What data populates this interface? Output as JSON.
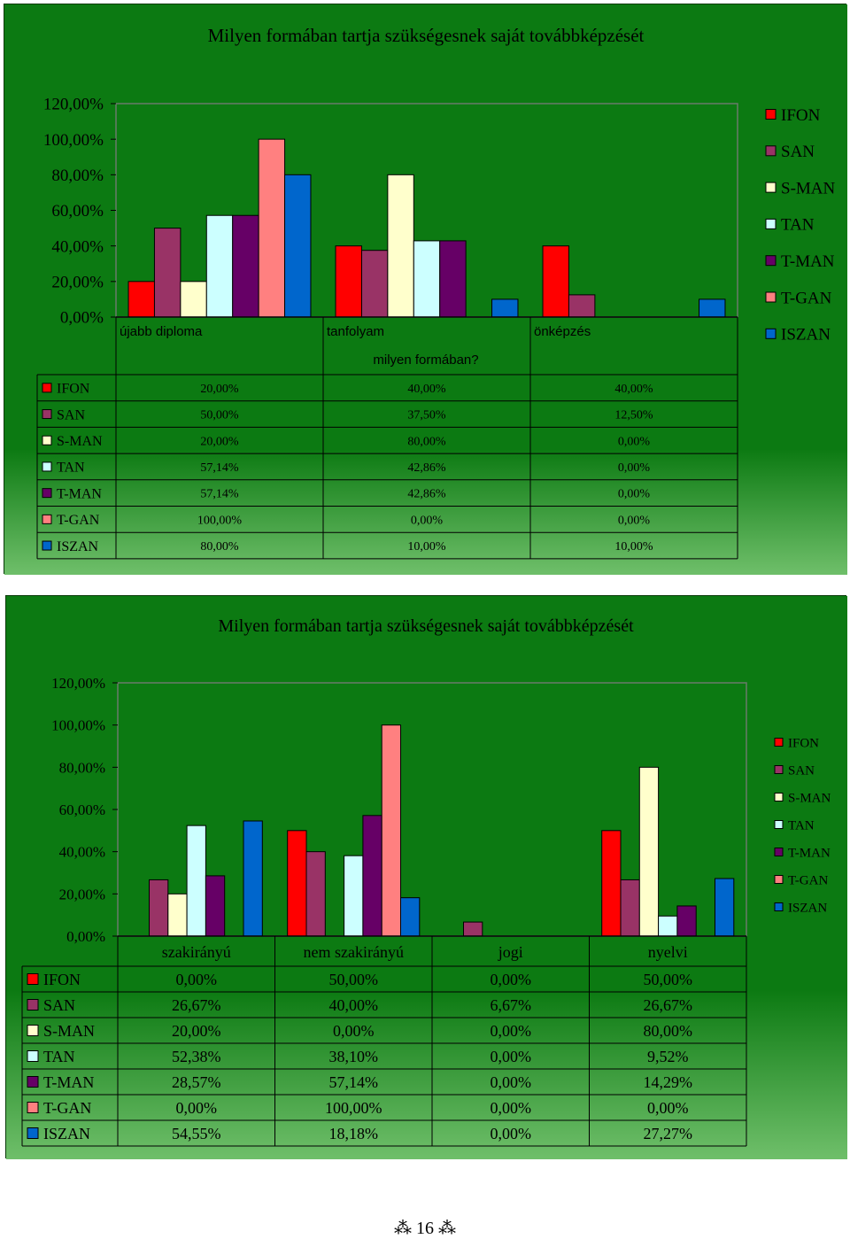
{
  "chart_data": [
    {
      "type": "bar",
      "title": "Milyen formában tartja szükségesnek saját továbbképzését",
      "xlabel": "milyen formában?",
      "ylabel": "",
      "ylim": [
        0,
        120
      ],
      "yticks": [
        "0,00%",
        "20,00%",
        "40,00%",
        "60,00%",
        "80,00%",
        "100,00%",
        "120,00%"
      ],
      "grid": false,
      "legend": "right",
      "categories": [
        "újabb diploma",
        "tanfolyam",
        "önképzés"
      ],
      "series": [
        {
          "name": "IFON",
          "color": "#ff0000",
          "values": [
            20,
            40,
            40
          ],
          "labels": [
            "20,00%",
            "40,00%",
            "40,00%"
          ]
        },
        {
          "name": "SAN",
          "color": "#993366",
          "values": [
            50,
            37.5,
            12.5
          ],
          "labels": [
            "50,00%",
            "37,50%",
            "12,50%"
          ]
        },
        {
          "name": "S-MAN",
          "color": "#ffffcc",
          "values": [
            20,
            80,
            0
          ],
          "labels": [
            "20,00%",
            "80,00%",
            "0,00%"
          ]
        },
        {
          "name": "TAN",
          "color": "#ccffff",
          "values": [
            57.14,
            42.86,
            0
          ],
          "labels": [
            "57,14%",
            "42,86%",
            "0,00%"
          ]
        },
        {
          "name": "T-MAN",
          "color": "#660066",
          "values": [
            57.14,
            42.86,
            0
          ],
          "labels": [
            "57,14%",
            "42,86%",
            "0,00%"
          ]
        },
        {
          "name": "T-GAN",
          "color": "#ff8080",
          "values": [
            100,
            0,
            0
          ],
          "labels": [
            "100,00%",
            "0,00%",
            "0,00%"
          ]
        },
        {
          "name": "ISZAN",
          "color": "#0066cc",
          "values": [
            80,
            10,
            10
          ],
          "labels": [
            "80,00%",
            "10,00%",
            "10,00%"
          ]
        }
      ]
    },
    {
      "type": "bar",
      "title": "Milyen formában tartja szükségesnek saját továbbképzését",
      "xlabel": "",
      "ylabel": "",
      "ylim": [
        0,
        120
      ],
      "yticks": [
        "0,00%",
        "20,00%",
        "40,00%",
        "60,00%",
        "80,00%",
        "100,00%",
        "120,00%"
      ],
      "grid": false,
      "legend": "right",
      "categories": [
        "szakirányú",
        "nem szakirányú",
        "jogi",
        "nyelvi"
      ],
      "series": [
        {
          "name": "IFON",
          "color": "#ff0000",
          "values": [
            0,
            50,
            0,
            50
          ],
          "labels": [
            "0,00%",
            "50,00%",
            "0,00%",
            "50,00%"
          ]
        },
        {
          "name": "SAN",
          "color": "#993366",
          "values": [
            26.67,
            40,
            6.67,
            26.67
          ],
          "labels": [
            "26,67%",
            "40,00%",
            "6,67%",
            "26,67%"
          ]
        },
        {
          "name": "S-MAN",
          "color": "#ffffcc",
          "values": [
            20,
            0,
            0,
            80
          ],
          "labels": [
            "20,00%",
            "0,00%",
            "0,00%",
            "80,00%"
          ]
        },
        {
          "name": "TAN",
          "color": "#ccffff",
          "values": [
            52.38,
            38.1,
            0,
            9.52
          ],
          "labels": [
            "52,38%",
            "38,10%",
            "0,00%",
            "9,52%"
          ]
        },
        {
          "name": "T-MAN",
          "color": "#660066",
          "values": [
            28.57,
            57.14,
            0,
            14.29
          ],
          "labels": [
            "28,57%",
            "57,14%",
            "0,00%",
            "14,29%"
          ]
        },
        {
          "name": "T-GAN",
          "color": "#ff8080",
          "values": [
            0,
            100,
            0,
            0
          ],
          "labels": [
            "0,00%",
            "100,00%",
            "0,00%",
            "0,00%"
          ]
        },
        {
          "name": "ISZAN",
          "color": "#0066cc",
          "values": [
            54.55,
            18.18,
            0,
            27.27
          ],
          "labels": [
            "54,55%",
            "18,18%",
            "0,00%",
            "27,27%"
          ]
        }
      ]
    }
  ],
  "footer": {
    "page_number": "16",
    "ornament_left": "⁂",
    "ornament_right": "⁂"
  }
}
